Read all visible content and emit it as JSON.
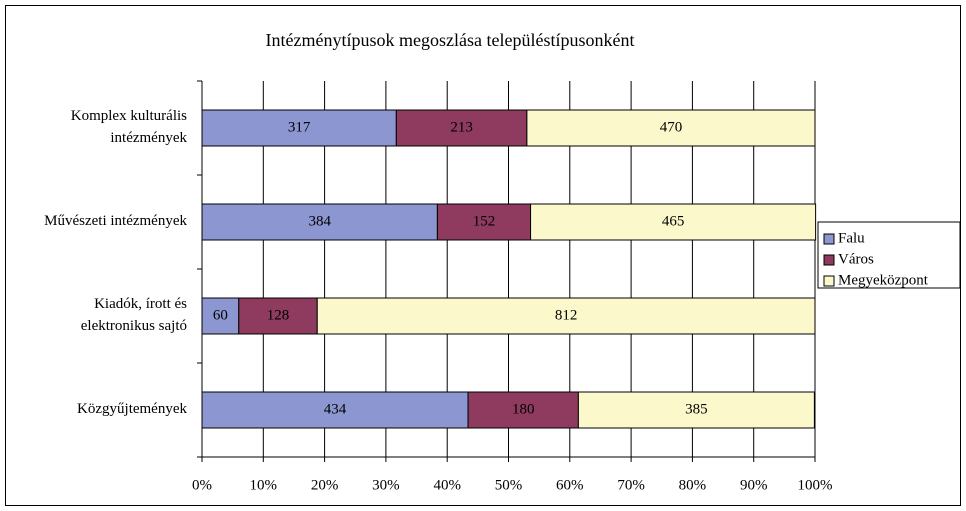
{
  "chart_data": {
    "type": "stacked-bar-horizontal",
    "title": "Intézménytípusok megoszlása településtípusonként",
    "categories": [
      "Komplex kulturális\nintézmények",
      "Művészeti intézmények",
      "Kiadók, írott és\nelektronikus sajtó",
      "Közgyűjtemények"
    ],
    "series": [
      {
        "name": "Falu",
        "color": "#8c96d0",
        "values": [
          317,
          384,
          60,
          434
        ]
      },
      {
        "name": "Város",
        "color": "#8e3b5f",
        "values": [
          213,
          152,
          128,
          180
        ]
      },
      {
        "name": "Megyeközpont",
        "color": "#fbf9cc",
        "values": [
          470,
          465,
          812,
          385
        ]
      }
    ],
    "xlim": [
      0,
      1000
    ],
    "xticks": [
      {
        "value": 0,
        "label": "0%"
      },
      {
        "value": 100,
        "label": "10%"
      },
      {
        "value": 200,
        "label": "20%"
      },
      {
        "value": 300,
        "label": "30%"
      },
      {
        "value": 400,
        "label": "40%"
      },
      {
        "value": 500,
        "label": "50%"
      },
      {
        "value": 600,
        "label": "60%"
      },
      {
        "value": 700,
        "label": "70%"
      },
      {
        "value": 800,
        "label": "80%"
      },
      {
        "value": 900,
        "label": "90%"
      },
      {
        "value": 1000,
        "label": "100%"
      }
    ],
    "grid": true,
    "legend": "right"
  }
}
